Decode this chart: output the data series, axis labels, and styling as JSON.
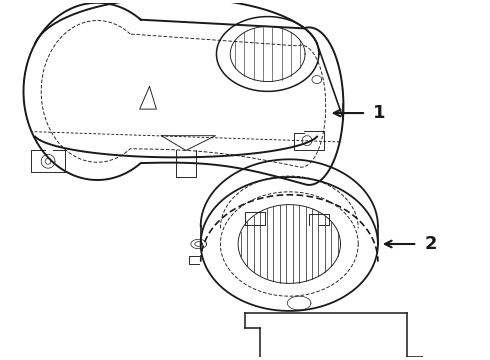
{
  "background_color": "#ffffff",
  "line_color": "#1a1a1a",
  "fig_width": 4.9,
  "fig_height": 3.6,
  "dpi": 100,
  "label1_text": "1",
  "label2_text": "2",
  "font_size_label": 13
}
